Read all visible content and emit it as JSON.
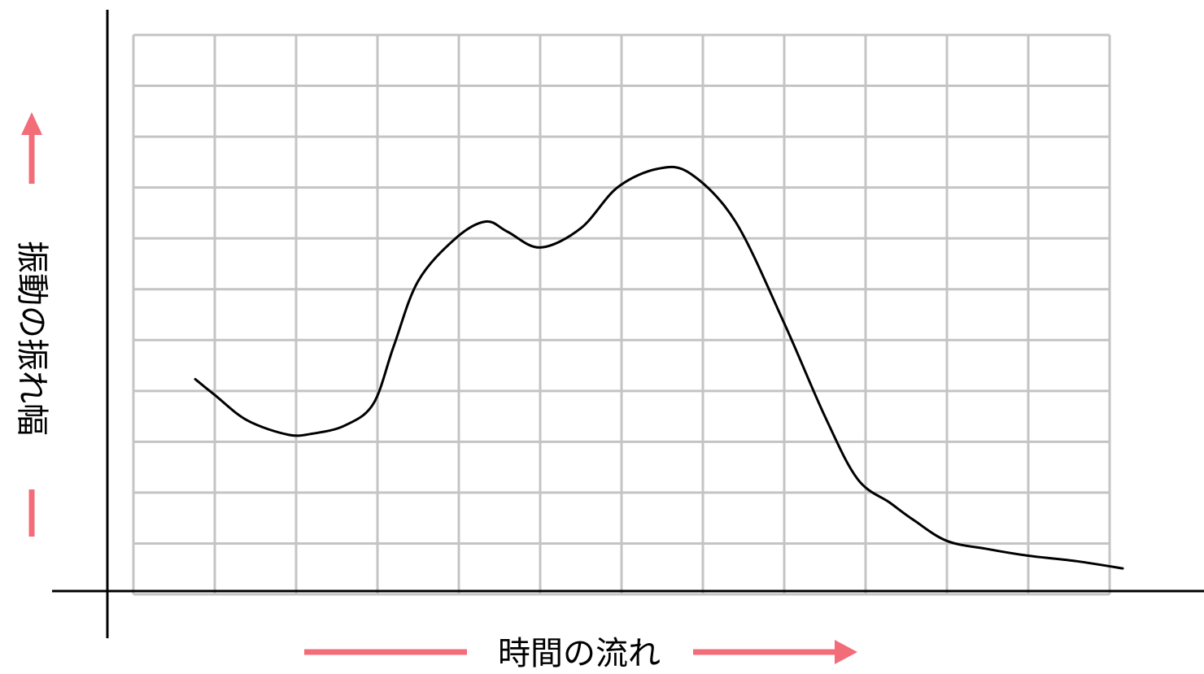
{
  "colors": {
    "grid": "#c4c4c4",
    "axis": "#000000",
    "curve": "#000000",
    "arrow": "#f26d78",
    "background": "#ffffff"
  },
  "chart_data": {
    "type": "line",
    "title": "",
    "xlabel": "時間の流れ",
    "ylabel": "振動の振れ幅",
    "grid": true,
    "grid_columns": 12,
    "grid_rows": 11,
    "xlim": [
      0,
      12
    ],
    "ylim": [
      0,
      11
    ],
    "series": [
      {
        "x": [
          0.76,
          1.0,
          1.4,
          1.9,
          2.2,
          2.6,
          2.95,
          3.2,
          3.5,
          3.96,
          4.33,
          4.6,
          5.0,
          5.5,
          5.95,
          6.45,
          6.85,
          7.4,
          8.0,
          8.5,
          8.9,
          9.3,
          9.6,
          10.0,
          10.5,
          11.0,
          11.6,
          12.16
        ],
        "y": [
          4.23,
          3.92,
          3.42,
          3.14,
          3.16,
          3.32,
          3.75,
          4.88,
          6.16,
          7.0,
          7.33,
          7.13,
          6.82,
          7.2,
          8.0,
          8.37,
          8.27,
          7.33,
          5.33,
          3.5,
          2.27,
          1.8,
          1.45,
          1.05,
          0.89,
          0.76,
          0.65,
          0.51
        ]
      }
    ]
  }
}
